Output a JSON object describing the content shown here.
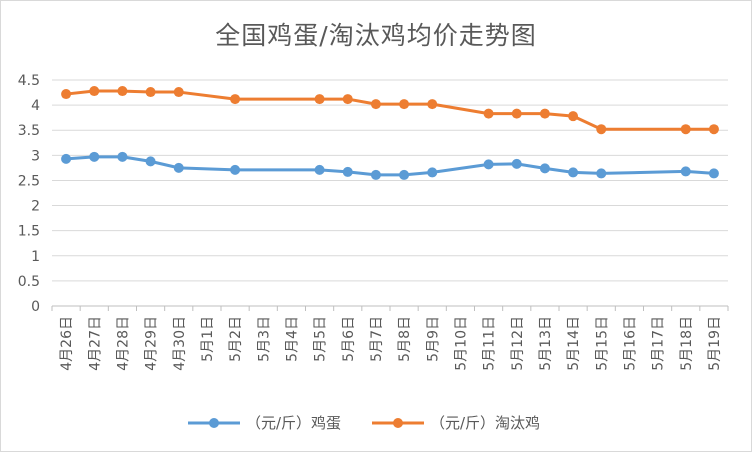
{
  "chart_data": {
    "type": "line",
    "title": "全国鸡蛋/淘汰鸡均价走势图",
    "categories": [
      "4月26日",
      "4月27日",
      "4月28日",
      "4月29日",
      "4月30日",
      "5月1日",
      "5月2日",
      "5月3日",
      "5月4日",
      "5月5日",
      "5月6日",
      "5月7日",
      "5月8日",
      "5月9日",
      "5月10日",
      "5月11日",
      "5月12日",
      "5月13日",
      "5月14日",
      "5月15日",
      "5月16日",
      "5月17日",
      "5月18日",
      "5月19日"
    ],
    "series": [
      {
        "name": "（元/斤）鸡蛋",
        "color": "#5b9bd5",
        "values": [
          2.93,
          2.97,
          2.97,
          2.88,
          2.75,
          null,
          2.71,
          null,
          null,
          2.71,
          2.67,
          2.61,
          2.61,
          2.66,
          null,
          2.82,
          2.83,
          2.74,
          2.66,
          2.64,
          null,
          null,
          2.68,
          2.64
        ]
      },
      {
        "name": "（元/斤）淘汰鸡",
        "color": "#ed7d31",
        "values": [
          4.22,
          4.28,
          4.28,
          4.26,
          4.26,
          null,
          4.12,
          null,
          null,
          4.12,
          4.12,
          4.02,
          4.02,
          4.02,
          null,
          3.83,
          3.83,
          3.83,
          3.78,
          3.52,
          null,
          null,
          3.52,
          3.52
        ]
      }
    ],
    "yticks": [
      "0",
      "0.5",
      "1",
      "1.5",
      "2",
      "2.5",
      "3",
      "3.5",
      "4",
      "4.5"
    ],
    "ylim": [
      0,
      4.5
    ],
    "grid": true,
    "legend_position": "bottom"
  }
}
